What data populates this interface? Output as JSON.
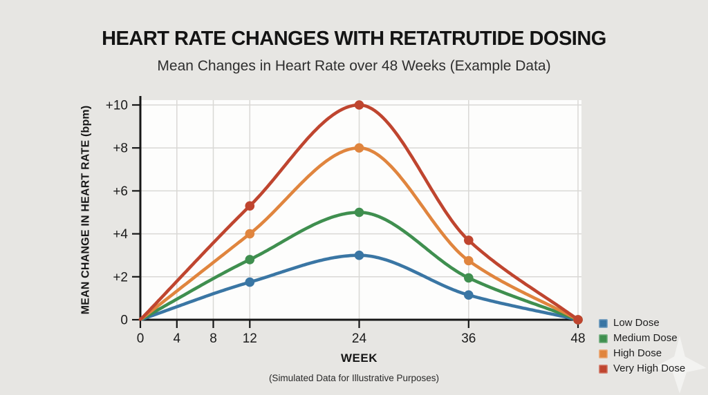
{
  "page": {
    "background": "#e7e6e3",
    "plot_background": "#fdfdfc",
    "grid_color": "#d9d8d5",
    "axis_color": "#161616"
  },
  "chart_data": {
    "type": "line",
    "title": "HEART RATE CHANGES WITH RETATRUTIDE DOSING",
    "subtitle": "Mean Changes in Heart Rate over 48 Weeks (Example Data)",
    "x": [
      0,
      12,
      24,
      36,
      48
    ],
    "series": [
      {
        "name": "Low Dose",
        "color": "#3a76a4",
        "values": [
          0,
          1.75,
          3.0,
          1.15,
          0
        ]
      },
      {
        "name": "Medium Dose",
        "color": "#3f8f4f",
        "values": [
          0,
          2.8,
          5.0,
          1.95,
          0
        ]
      },
      {
        "name": "High Dose",
        "color": "#e0853e",
        "values": [
          0,
          4.0,
          8.0,
          2.75,
          0
        ]
      },
      {
        "name": "Very High Dose",
        "color": "#bf452f",
        "values": [
          0,
          5.3,
          10.0,
          3.7,
          0
        ]
      }
    ],
    "marker_x": [
      12,
      24,
      36,
      48
    ],
    "xlabel": "WEEK",
    "ylabel": "MEAN CHANGE IN HEART RATE (bpm)",
    "xticks": {
      "values": [
        0,
        4,
        8,
        12,
        24,
        36,
        48
      ],
      "labels": [
        "0",
        "4",
        "8",
        "12",
        "24",
        "36",
        "48"
      ]
    },
    "yticks": {
      "values": [
        0,
        2,
        4,
        6,
        8,
        10
      ],
      "labels": [
        "0",
        "+2",
        "+4",
        "+6",
        "+8",
        "+10"
      ]
    },
    "xlim": [
      0,
      48
    ],
    "ylim": [
      0,
      10
    ],
    "grid": true,
    "legend_position": "bottom-right",
    "footer": "(Simulated Data for Illustrative Purposes)"
  }
}
